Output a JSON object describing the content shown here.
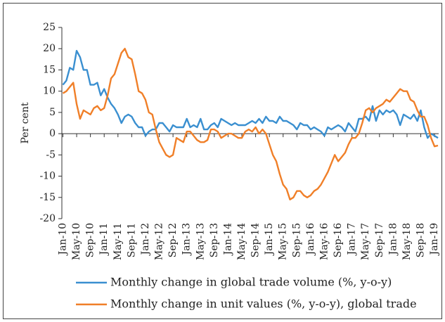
{
  "chart_data": {
    "type": "line",
    "y_label": "Per cent",
    "categories": [
      "Jan-10",
      null,
      null,
      null,
      "May-10",
      null,
      null,
      null,
      "Sep-10",
      null,
      null,
      null,
      "Jan-11",
      null,
      null,
      null,
      "May-11",
      null,
      null,
      null,
      "Sep-11",
      null,
      null,
      null,
      "Jan-12",
      null,
      null,
      null,
      "May-12",
      null,
      null,
      null,
      "Sep-12",
      null,
      null,
      null,
      "Jan-13",
      null,
      null,
      null,
      "May-13",
      null,
      null,
      null,
      "Sep-13",
      null,
      null,
      null,
      "Jan-14",
      null,
      null,
      null,
      "May-14",
      null,
      null,
      null,
      "Sep-14",
      null,
      null,
      null,
      "Jan-15",
      null,
      null,
      null,
      "May-15",
      null,
      null,
      null,
      "Sep-15",
      null,
      null,
      null,
      "Jan-16",
      null,
      null,
      null,
      "May-16",
      null,
      null,
      null,
      "Sep-16",
      null,
      null,
      null,
      "Jan-17",
      null,
      null,
      null,
      "May-17",
      null,
      null,
      null,
      "Sep-17",
      null,
      null,
      null,
      "Jan-18",
      null,
      null,
      null,
      "May-18",
      null,
      null,
      null,
      "Sep-18",
      null,
      null,
      null,
      "Jan-19",
      null
    ],
    "series": [
      {
        "name": "Monthly change in global trade volume (%, y-o-y)",
        "color": "#3a8fd0",
        "values": [
          11.5,
          12.5,
          15.5,
          15,
          19.5,
          18,
          15,
          15,
          11.5,
          11.5,
          12,
          9,
          10.5,
          8.5,
          7,
          6,
          4.5,
          2.5,
          4,
          4.5,
          4,
          2.5,
          1.5,
          1.5,
          -0.5,
          0.5,
          1,
          1,
          2.5,
          2.5,
          1.5,
          0.5,
          2,
          1.5,
          1.5,
          1.5,
          3.5,
          1.5,
          2,
          1.5,
          3.5,
          1,
          1,
          2,
          2.5,
          1.5,
          3.5,
          3,
          2.5,
          2,
          2.5,
          2,
          2,
          2,
          2.5,
          3,
          2.5,
          3.5,
          2.5,
          4,
          3,
          3,
          2.5,
          4,
          3,
          3,
          2.5,
          2,
          1,
          2.5,
          2,
          2,
          1,
          1.5,
          1,
          0.5,
          -0.5,
          1.5,
          1,
          1.5,
          2,
          1.5,
          0.5,
          2.5,
          1.5,
          0.5,
          3.5,
          3.5,
          4,
          3,
          6.5,
          3,
          5.5,
          4.5,
          5.5,
          5,
          5.5,
          4.5,
          2,
          4.5,
          4,
          3.5,
          4.5,
          3,
          5.5,
          1.5,
          -1,
          0,
          -0.5,
          -1
        ]
      },
      {
        "name": "Monthly change in unit values (%, y-o-y), global trade",
        "color": "#f07f28",
        "values": [
          9.5,
          10,
          11,
          12,
          7,
          3.5,
          5.5,
          5,
          4.5,
          6,
          6.5,
          5.5,
          6,
          9,
          13,
          14,
          16.5,
          19,
          20,
          18,
          17.5,
          14,
          10,
          9.5,
          8,
          5,
          4.5,
          1,
          -2,
          -3.5,
          -5,
          -5.5,
          -5,
          -1,
          -1.5,
          -2,
          0.5,
          0.5,
          -0.5,
          -1.5,
          -2,
          -2,
          -1.5,
          1,
          1,
          0.5,
          -1,
          -0.5,
          0,
          0,
          -0.5,
          -1,
          -1,
          0.5,
          1,
          0.5,
          1.5,
          0,
          1,
          0,
          -2.5,
          -5,
          -6.5,
          -9.5,
          -12,
          -13,
          -15.5,
          -15,
          -13.5,
          -13.5,
          -14.5,
          -15,
          -14.5,
          -13.5,
          -13,
          -12,
          -10.5,
          -9,
          -7,
          -5,
          -6.5,
          -5.5,
          -4.5,
          -2.5,
          -1,
          -1,
          0,
          2.5,
          5.5,
          6,
          5,
          6,
          6.5,
          7,
          8,
          7.5,
          8.5,
          9.5,
          10.5,
          10,
          10,
          8,
          7.5,
          5.5,
          4,
          4,
          2,
          -1,
          -3,
          -2.8
        ]
      }
    ],
    "ylim": [
      -20,
      25
    ],
    "yticks": [
      -20,
      -15,
      -10,
      -5,
      0,
      5,
      10,
      15,
      20,
      25
    ]
  }
}
